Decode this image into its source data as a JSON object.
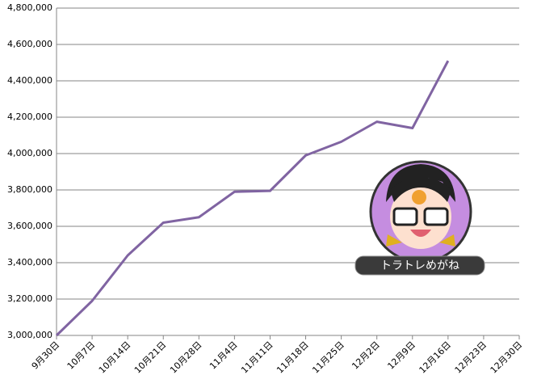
{
  "chart_data": {
    "type": "line",
    "categories": [
      "9月30日",
      "10月7日",
      "10月14日",
      "10月21日",
      "10月28日",
      "11月4日",
      "11月11日",
      "11月18日",
      "11月25日",
      "12月2日",
      "12月9日",
      "12月16日",
      "12月23日",
      "12月30日"
    ],
    "series": [
      {
        "name": null,
        "color": "#8064a2",
        "values": [
          3000000,
          3190000,
          3440000,
          3620000,
          3650000,
          3790000,
          3795000,
          3990000,
          4065000,
          4175000,
          4140000,
          4510000,
          null,
          null
        ]
      }
    ],
    "ylim": [
      3000000,
      4800000
    ],
    "yticks": [
      {
        "value": 3000000,
        "label": "3,000,000"
      },
      {
        "value": 3200000,
        "label": "3,200,000"
      },
      {
        "value": 3400000,
        "label": "3,400,000"
      },
      {
        "value": 3600000,
        "label": "3,600,000"
      },
      {
        "value": 3800000,
        "label": "3,800,000"
      },
      {
        "value": 4000000,
        "label": "4,000,000"
      },
      {
        "value": 4200000,
        "label": "4,200,000"
      },
      {
        "value": 4400000,
        "label": "4,400,000"
      },
      {
        "value": 4600000,
        "label": "4,600,000"
      },
      {
        "value": 4800000,
        "label": "4,800,000"
      }
    ],
    "grid": true,
    "annotation": "トラトレめがね"
  }
}
